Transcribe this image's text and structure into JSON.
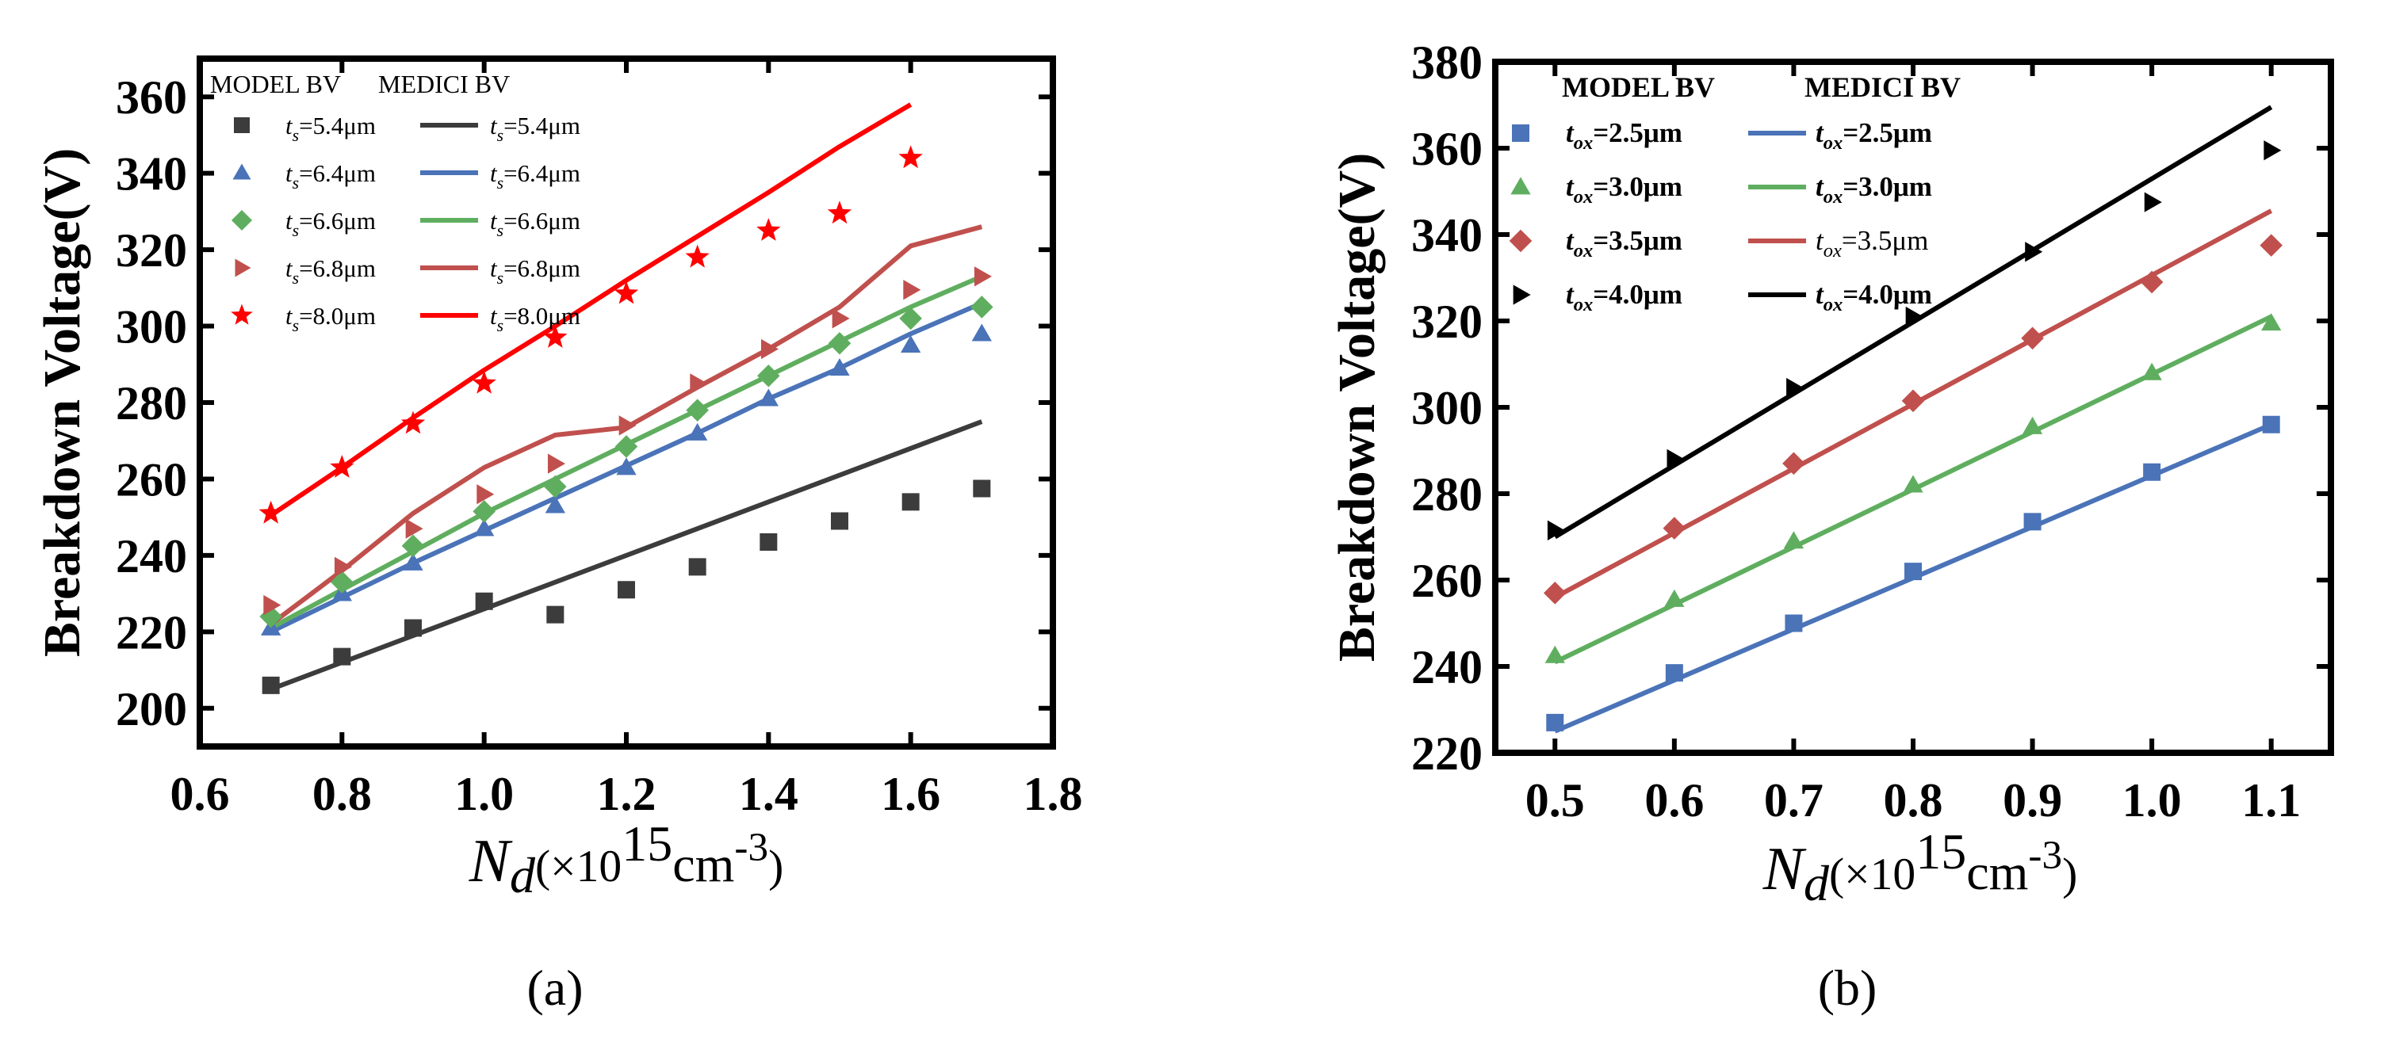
{
  "chart_data": [
    {
      "panel": "(a)",
      "type": "line+scatter",
      "ylabel": "Breakdown Voltage(V)",
      "xlabel_var": "N",
      "xlabel_sub": "d",
      "xlabel_unit": "(×10",
      "xlabel_exp": "15",
      "xlabel_cm": "cm",
      "xlabel_cmexp": "-3",
      "xlabel_close": ")",
      "xlim": [
        0.6,
        1.8
      ],
      "ylim": [
        190,
        370
      ],
      "xticks": [
        0.6,
        0.8,
        1.0,
        1.2,
        1.4,
        1.6,
        1.8
      ],
      "xtick_labels": [
        "0.6",
        "0.8",
        "1.0",
        "1.2",
        "1.4",
        "1.6",
        "1.8"
      ],
      "yticks": [
        200,
        220,
        240,
        260,
        280,
        300,
        320,
        340,
        360
      ],
      "ytick_labels": [
        "200",
        "220",
        "240",
        "260",
        "280",
        "300",
        "320",
        "340",
        "360"
      ],
      "legend_header_model": "MODEL BV",
      "legend_header_medici": "MEDICI BV",
      "legend_var": "t",
      "legend_sub": "s",
      "series": [
        {
          "name": "5.4",
          "value_label": "=5.4μm",
          "color": "#3c3c3c",
          "marker": "square",
          "model_x": [
            0.7,
            0.8,
            0.9,
            1.0,
            1.1,
            1.2,
            1.3,
            1.4,
            1.5,
            1.6,
            1.7
          ],
          "model_y": [
            206,
            213.5,
            221,
            228,
            224.5,
            231,
            237,
            243.5,
            249,
            254,
            257.5
          ],
          "medici_x": [
            0.7,
            1.7
          ],
          "medici_y": [
            205,
            275
          ]
        },
        {
          "name": "6.4",
          "value_label": "=6.4μm",
          "color": "#4a73b8",
          "marker": "triangle",
          "model_x": [
            0.7,
            0.8,
            0.9,
            1.0,
            1.1,
            1.2,
            1.3,
            1.4,
            1.5,
            1.6,
            1.7
          ],
          "model_y": [
            221,
            230,
            238,
            247,
            253,
            263,
            272,
            281,
            289,
            295,
            298
          ],
          "medici_x": [
            0.7,
            0.8,
            0.9,
            1.0,
            1.1,
            1.2,
            1.3,
            1.4,
            1.5,
            1.6,
            1.7
          ],
          "medici_y": [
            220,
            229,
            238,
            246.5,
            255,
            263.5,
            272,
            281,
            289,
            298,
            306
          ]
        },
        {
          "name": "6.6",
          "value_label": "=6.6μm",
          "color": "#5fae5f",
          "marker": "diamond",
          "model_x": [
            0.7,
            0.8,
            0.9,
            1.0,
            1.1,
            1.2,
            1.3,
            1.4,
            1.5,
            1.6,
            1.7
          ],
          "model_y": [
            224,
            233,
            242.5,
            251.5,
            258,
            268.5,
            278,
            287,
            295.5,
            302,
            305
          ],
          "medici_x": [
            0.7,
            0.8,
            0.9,
            1.0,
            1.1,
            1.2,
            1.3,
            1.4,
            1.5,
            1.6,
            1.7
          ],
          "medici_y": [
            221,
            231,
            241,
            251,
            260,
            269,
            278,
            287,
            296,
            305,
            313
          ]
        },
        {
          "name": "6.8",
          "value_label": "=6.8μm",
          "color": "#c0504d",
          "marker": "triangle-right",
          "model_x": [
            0.7,
            0.8,
            0.9,
            1.0,
            1.1,
            1.2,
            1.3,
            1.4,
            1.5,
            1.6,
            1.7
          ],
          "model_y": [
            227,
            237,
            247,
            256,
            264,
            274,
            285,
            294,
            302,
            309.5,
            313
          ],
          "medici_x": [
            0.7,
            0.8,
            0.9,
            1.0,
            1.1,
            1.2,
            1.3,
            1.4,
            1.5,
            1.6,
            1.7
          ],
          "medici_y": [
            222,
            236,
            251,
            263,
            271.5,
            273.5,
            284,
            294,
            305,
            321,
            326
          ]
        },
        {
          "name": "8.0",
          "value_label": "=8.0μm",
          "color": "#ff0000",
          "marker": "star",
          "model_x": [
            0.7,
            0.8,
            0.9,
            1.0,
            1.1,
            1.2,
            1.3,
            1.4,
            1.5,
            1.6
          ],
          "model_y": [
            251,
            263,
            274.5,
            285,
            297,
            308.5,
            318,
            325,
            329.5,
            344
          ],
          "medici_x": [
            0.7,
            0.8,
            0.9,
            1.0,
            1.1,
            1.2,
            1.3,
            1.4,
            1.5,
            1.6
          ],
          "medici_y": [
            250.5,
            263,
            276,
            288.5,
            300,
            312,
            323.5,
            335,
            347,
            358
          ]
        }
      ]
    },
    {
      "panel": "(b)",
      "type": "line+scatter",
      "ylabel": "Breakdown Voltage(V)",
      "xlabel_var": "N",
      "xlabel_sub": "d",
      "xlabel_unit": "(×10",
      "xlabel_exp": "15",
      "xlabel_cm": "cm",
      "xlabel_cmexp": "-3",
      "xlabel_close": ")",
      "xlim": [
        0.45,
        1.15
      ],
      "ylim": [
        220,
        380
      ],
      "xticks": [
        0.5,
        0.6,
        0.7,
        0.8,
        0.9,
        1.0,
        1.1
      ],
      "xtick_labels": [
        "0.5",
        "0.6",
        "0.7",
        "0.8",
        "0.9",
        "1.0",
        "1.1"
      ],
      "yticks": [
        220,
        240,
        260,
        280,
        300,
        320,
        340,
        360,
        380
      ],
      "ytick_labels": [
        "220",
        "240",
        "260",
        "280",
        "300",
        "320",
        "340",
        "360",
        "380"
      ],
      "legend_header_model": "MODEL BV",
      "legend_header_medici": "MEDICI BV",
      "legend_var": "t",
      "legend_sub": "ox",
      "series": [
        {
          "name": "2.5",
          "value_label": "=2.5μm",
          "color": "#4a73b8",
          "marker": "square",
          "model_x": [
            0.5,
            0.6,
            0.7,
            0.8,
            0.9,
            1.0,
            1.1
          ],
          "model_y": [
            227,
            238.5,
            250,
            262,
            273.5,
            285,
            296
          ],
          "medici_x": [
            0.5,
            1.1
          ],
          "medici_y": [
            225,
            296
          ]
        },
        {
          "name": "3.0",
          "value_label": "=3.0μm",
          "color": "#5fae5f",
          "marker": "triangle",
          "model_x": [
            0.5,
            0.6,
            0.7,
            0.8,
            0.9,
            1.0,
            1.1
          ],
          "model_y": [
            242.5,
            255.5,
            269,
            282,
            295.5,
            308,
            319.5
          ],
          "medici_x": [
            0.5,
            1.1
          ],
          "medici_y": [
            241,
            321
          ]
        },
        {
          "name": "3.5",
          "value_label": "=3.5μm",
          "color": "#c0504d",
          "marker": "diamond",
          "model_x": [
            0.5,
            0.6,
            0.7,
            0.8,
            0.9,
            1.0,
            1.1
          ],
          "model_y": [
            257,
            272,
            287,
            301.5,
            316,
            329,
            337.5
          ],
          "medici_x": [
            0.5,
            1.1
          ],
          "medici_y": [
            256,
            345.5
          ]
        },
        {
          "name": "4.0",
          "value_label": "=4.0μm",
          "color": "#000000",
          "marker": "triangle-right",
          "model_x": [
            0.5,
            0.6,
            0.7,
            0.8,
            0.9,
            1.0,
            1.1
          ],
          "model_y": [
            271.5,
            288,
            304.5,
            321,
            336,
            347.5,
            359.5
          ],
          "medici_x": [
            0.5,
            1.1
          ],
          "medici_y": [
            270,
            369.5
          ]
        }
      ]
    }
  ]
}
